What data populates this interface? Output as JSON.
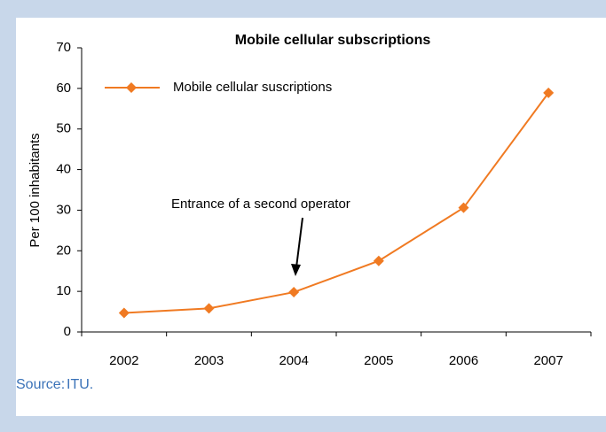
{
  "chart_data": {
    "type": "line",
    "title": "Mobile cellular subscriptions",
    "y_label": "Per 100 inhabitants",
    "categories": [
      "2002",
      "2003",
      "2004",
      "2005",
      "2006",
      "2007"
    ],
    "series": [
      {
        "name": "Mobile cellular suscriptions",
        "color": "#f07a22",
        "values": [
          4.7,
          5.8,
          9.8,
          17.5,
          30.6,
          58.9
        ]
      }
    ],
    "ylim": [
      0,
      70
    ],
    "yticks": [
      0,
      10,
      20,
      30,
      40,
      50,
      60,
      70
    ],
    "grid": false,
    "legend": "top-left",
    "annotation": "Entrance of a second operator"
  },
  "source": {
    "label": "Source:",
    "text": "ITU."
  }
}
